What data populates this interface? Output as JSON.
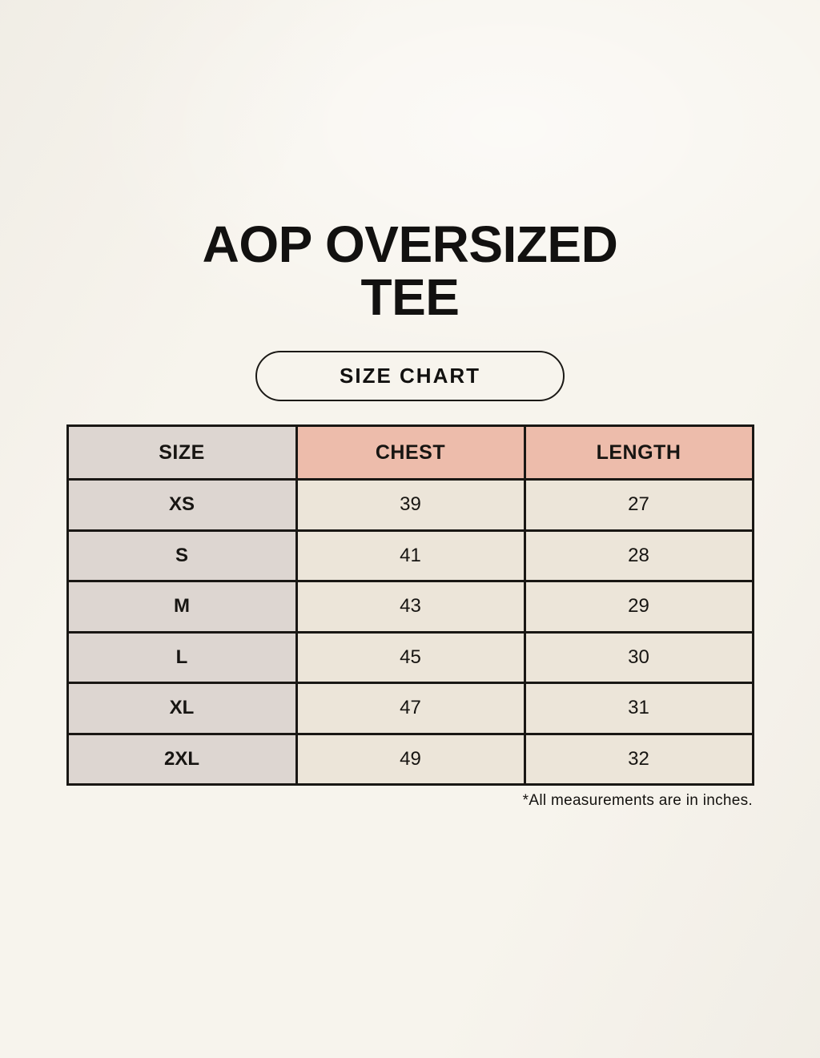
{
  "page": {
    "title_line1": "AOP OVERSIZED",
    "title_line2": "TEE",
    "badge_label": "SIZE CHART",
    "footnote": "*All measurements are in inches."
  },
  "table": {
    "columns": [
      "SIZE",
      "CHEST",
      "LENGTH"
    ],
    "rows": [
      {
        "size": "XS",
        "chest": "39",
        "length": "27"
      },
      {
        "size": "S",
        "chest": "41",
        "length": "28"
      },
      {
        "size": "M",
        "chest": "43",
        "length": "29"
      },
      {
        "size": "L",
        "chest": "45",
        "length": "30"
      },
      {
        "size": "XL",
        "chest": "47",
        "length": "31"
      },
      {
        "size": "2XL",
        "chest": "49",
        "length": "32"
      }
    ]
  },
  "colors": {
    "background": "#f7f4ed",
    "header_size_bg": "#ddd6d1",
    "header_measure_bg": "#edbcab",
    "row_label_bg": "#ddd6d1",
    "value_cell_bg": "#ece5d9",
    "border": "#191714",
    "text": "#121110"
  },
  "chart_data": {
    "type": "table",
    "title": "AOP OVERSIZED TEE",
    "subtitle": "SIZE CHART",
    "columns": [
      "SIZE",
      "CHEST",
      "LENGTH"
    ],
    "rows": [
      [
        "XS",
        39,
        27
      ],
      [
        "S",
        41,
        28
      ],
      [
        "M",
        43,
        29
      ],
      [
        "L",
        45,
        30
      ],
      [
        "XL",
        47,
        31
      ],
      [
        "2XL",
        49,
        32
      ]
    ],
    "units": "inches",
    "note": "*All measurements are in inches."
  }
}
